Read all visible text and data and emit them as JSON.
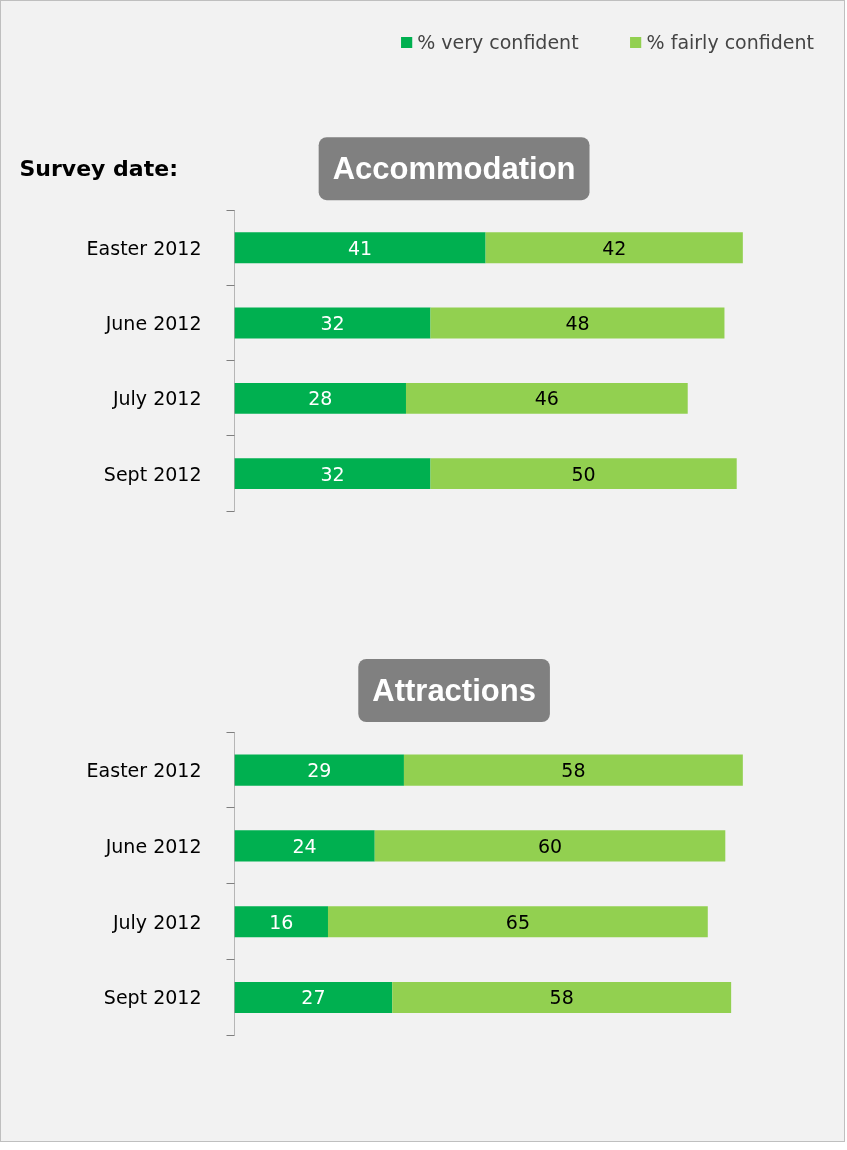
{
  "chart_data": [
    {
      "type": "bar",
      "orientation": "horizontal",
      "stacked": true,
      "title": "Accommodation",
      "ylabel": "Survey date:",
      "categories": [
        "Easter 2012",
        "June 2012",
        "July 2012",
        "Sept 2012"
      ],
      "data_labels": true,
      "legend": "top right",
      "series": [
        {
          "name": "% very confident",
          "color": "#00b050",
          "values": [
            41,
            32,
            28,
            32
          ]
        },
        {
          "name": "% fairly confident",
          "color": "#92d050",
          "values": [
            42,
            48,
            46,
            50
          ]
        }
      ]
    },
    {
      "type": "bar",
      "orientation": "horizontal",
      "stacked": true,
      "title": "Attractions",
      "categories": [
        "Easter 2012",
        "June 2012",
        "July 2012",
        "Sept 2012"
      ],
      "data_labels": true,
      "series": [
        {
          "color": "#00b050",
          "values": [
            29,
            24,
            16,
            27
          ]
        },
        {
          "color": "#92d050",
          "values": [
            58,
            60,
            65,
            58
          ]
        }
      ]
    }
  ]
}
